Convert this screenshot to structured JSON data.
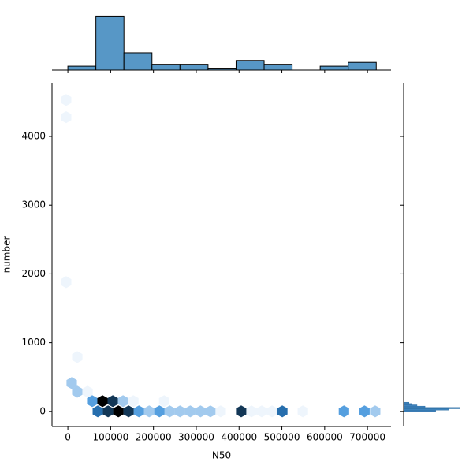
{
  "chart_data": [
    {
      "type": "hexbin",
      "x_label": "N50",
      "y_label": "number",
      "x": [
        70000,
        94000,
        118000,
        142000,
        166000,
        190000,
        214000,
        238000,
        262000,
        286000,
        310000,
        333000,
        357000,
        405000,
        429000,
        453000,
        477000,
        501000,
        549000,
        645000,
        693000,
        718000,
        57000,
        81000,
        105000,
        129000,
        153000,
        225000,
        22000,
        46000,
        9000,
        22000,
        -4000,
        -4000,
        -4000
      ],
      "y": [
        0,
        0,
        0,
        0,
        0,
        0,
        0,
        0,
        0,
        0,
        0,
        0,
        0,
        0,
        0,
        0,
        0,
        0,
        0,
        0,
        0,
        0,
        149,
        149,
        149,
        149,
        149,
        149,
        286,
        286,
        412,
        790,
        1880,
        4280,
        4530
      ],
      "counts": [
        4,
        5,
        6,
        5,
        3,
        2,
        3,
        2,
        2,
        2,
        2,
        2,
        1,
        5,
        1,
        1,
        1,
        4,
        1,
        3,
        3,
        2,
        3,
        6,
        5,
        2,
        1,
        1,
        2,
        1,
        2,
        1,
        1,
        1,
        1
      ],
      "cmap": [
        "#eef5fc",
        "#2f8ad8",
        "#000000"
      ],
      "xlim": [
        -37000,
        755000
      ],
      "ylim": [
        -220,
        4780
      ],
      "xticks": [
        0,
        100000,
        200000,
        300000,
        400000,
        500000,
        600000,
        700000
      ],
      "yticks": [
        0,
        1000,
        2000,
        3000,
        4000
      ]
    },
    {
      "type": "histogram",
      "orientation": "vertical",
      "color": "#5797c6",
      "bins": [
        0,
        65500,
        131000,
        196500,
        262000,
        327500,
        393000,
        458500,
        524000,
        589500,
        655000,
        720500
      ],
      "counts": [
        2,
        28,
        9,
        3,
        3,
        1,
        5,
        3,
        0,
        2,
        4
      ],
      "ylim": [
        0,
        29.4
      ]
    },
    {
      "type": "histogram",
      "orientation": "horizontal",
      "color": "#3f84be",
      "bins": [
        0,
        19,
        38,
        57,
        76,
        95,
        114,
        133
      ],
      "counts": [
        12,
        17,
        21,
        8,
        5,
        3,
        2
      ],
      "xlim": [
        0,
        26
      ]
    }
  ]
}
